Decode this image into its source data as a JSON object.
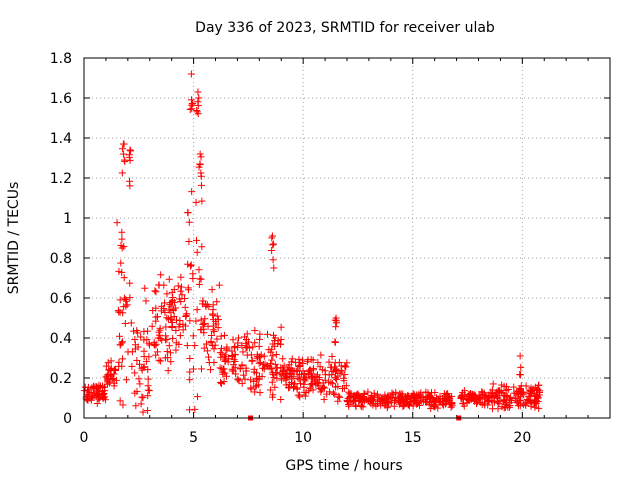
{
  "chart_data": {
    "type": "scatter",
    "title": "Day 336 of 2023, SRMTID for receiver ulab",
    "xlabel": "GPS time / hours",
    "ylabel": "SRMTID / TECUs",
    "xlim": [
      0,
      24
    ],
    "ylim": [
      0,
      1.8
    ],
    "xticks": [
      0,
      5,
      10,
      15,
      20
    ],
    "xtick_labels": [
      "0",
      "5",
      "10",
      "15",
      "20"
    ],
    "yticks": [
      0,
      0.2,
      0.4,
      0.6,
      0.8,
      1.0,
      1.2,
      1.4,
      1.6,
      1.8
    ],
    "ytick_labels": [
      "0",
      "0.2",
      "0.4",
      "0.6",
      "0.8",
      "1",
      "1.2",
      "1.4",
      "1.6",
      "1.8"
    ],
    "grid": true,
    "marker": "plus",
    "color": "#ff0000",
    "series": [
      {
        "name": "SRMTID",
        "profile": [
          {
            "start": 0.0,
            "end": 1.0,
            "base": 0.13,
            "spread": 0.1
          },
          {
            "start": 1.0,
            "end": 1.5,
            "base": 0.22,
            "spread": 0.12
          },
          {
            "start": 1.5,
            "end": 2.2,
            "base": 0.55,
            "spread": 0.85
          },
          {
            "start": 2.2,
            "end": 3.0,
            "base": 0.3,
            "spread": 0.6
          },
          {
            "start": 3.0,
            "end": 4.0,
            "base": 0.45,
            "spread": 0.45
          },
          {
            "start": 4.0,
            "end": 4.7,
            "base": 0.55,
            "spread": 0.4
          },
          {
            "start": 4.7,
            "end": 5.4,
            "base": 0.6,
            "spread": 1.1
          },
          {
            "start": 5.4,
            "end": 6.2,
            "base": 0.45,
            "spread": 0.4
          },
          {
            "start": 6.2,
            "end": 7.5,
            "base": 0.3,
            "spread": 0.25
          },
          {
            "start": 7.5,
            "end": 9.0,
            "base": 0.28,
            "spread": 0.35
          },
          {
            "start": 9.0,
            "end": 12.0,
            "base": 0.2,
            "spread": 0.2
          },
          {
            "start": 12.0,
            "end": 16.8,
            "base": 0.09,
            "spread": 0.07
          },
          {
            "start": 17.2,
            "end": 18.5,
            "base": 0.1,
            "spread": 0.07
          },
          {
            "start": 18.5,
            "end": 20.8,
            "base": 0.11,
            "spread": 0.12
          }
        ],
        "peaks": [
          {
            "x": 1.8,
            "y": 1.37
          },
          {
            "x": 2.1,
            "y": 1.34
          },
          {
            "x": 4.9,
            "y": 1.72
          },
          {
            "x": 5.2,
            "y": 1.63
          },
          {
            "x": 5.3,
            "y": 1.32
          },
          {
            "x": 8.6,
            "y": 0.91
          },
          {
            "x": 11.5,
            "y": 0.5
          },
          {
            "x": 19.9,
            "y": 0.31
          }
        ]
      }
    ],
    "gap_markers": [
      7.6,
      17.1
    ],
    "data_range_end": 20.8
  }
}
